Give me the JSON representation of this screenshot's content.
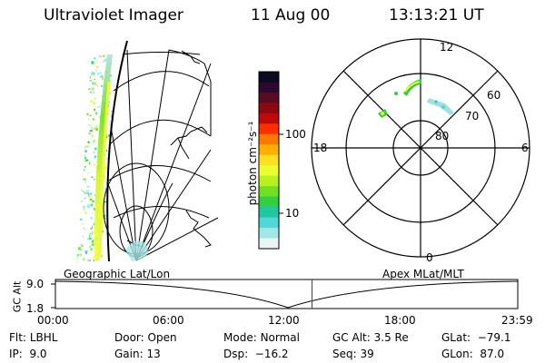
{
  "header": {
    "instrument": "Ultraviolet Imager",
    "date": "11 Aug 00",
    "time": "13:13:21 UT"
  },
  "colorbar": {
    "unit_label": "photon cm⁻²s⁻¹",
    "ticks": [
      "100",
      "10"
    ],
    "colors": [
      "#0a0a20",
      "#2a0a30",
      "#5a0a25",
      "#8a0a10",
      "#c00a0a",
      "#ff3000",
      "#ff7800",
      "#ffb000",
      "#ffe020",
      "#e8ff30",
      "#b8f020",
      "#70e020",
      "#30d040",
      "#20c8a0",
      "#50d8d8",
      "#a0e8e8",
      "#e6f4f4"
    ]
  },
  "polar": {
    "mlat_labels": [
      "60",
      "70",
      "80"
    ],
    "mlt_labels": [
      "12",
      "18",
      "6",
      "0"
    ]
  },
  "timeline": {
    "left_title": "Geographic Lat/Lon",
    "right_title": "Apex MLat/MLT",
    "y_title": "GC Alt",
    "y_ticks": [
      "9.0",
      "1.8"
    ],
    "x_ticks": [
      "00:00",
      "06:00",
      "12:00",
      "18:00",
      "23:59"
    ],
    "current_time_fraction": 0.555
  },
  "info": {
    "row1": [
      {
        "label": "Flt:",
        "value": "LBHL"
      },
      {
        "label": "Door:",
        "value": "Open"
      },
      {
        "label": "Mode:",
        "value": "Normal"
      },
      {
        "label": "GC Alt:",
        "value": "3.5 Re"
      },
      {
        "label": "GLat:",
        "value": "−79.1"
      }
    ],
    "row2": [
      {
        "label": "IP:",
        "value": "9.0"
      },
      {
        "label": "Gain:",
        "value": "13"
      },
      {
        "label": "Dsp:",
        "value": "−16.2"
      },
      {
        "label": "Seq:",
        "value": "39"
      },
      {
        "label": "GLon:",
        "value": "87.0"
      }
    ]
  }
}
